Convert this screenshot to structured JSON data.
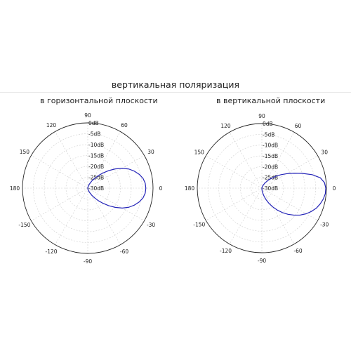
{
  "page": {
    "title": "вертикальная поляризация"
  },
  "chart_data": [
    {
      "type": "polar-line",
      "title": "в горизонтальной плоскости",
      "angle_unit": "deg",
      "angle_ticks": [
        0,
        30,
        60,
        90,
        120,
        150,
        180,
        -150,
        -120,
        -90,
        -60,
        -30
      ],
      "angle_tick_labels": [
        "0",
        "30",
        "60",
        "90",
        "120",
        "150",
        "180",
        "-150",
        "-120",
        "-90",
        "-60",
        "-30"
      ],
      "radial_ticks": [
        -30,
        -25,
        -20,
        -15,
        -10,
        -5,
        0
      ],
      "radial_tick_labels": [
        "-30dB",
        "-25dB",
        "-20dB",
        "-15dB",
        "-10dB",
        "-5dB",
        "0dB"
      ],
      "rlim": [
        -30,
        0
      ],
      "grid": true,
      "series": [
        {
          "color": "#2424b8",
          "angles": [
            -90,
            -80,
            -70,
            -60,
            -55,
            -50,
            -45,
            -40,
            -35,
            -30,
            -25,
            -20,
            -15,
            -10,
            -5,
            0,
            5,
            10,
            15,
            20,
            25,
            30,
            35,
            40,
            45,
            50,
            55,
            60,
            70,
            80,
            90
          ],
          "values": [
            -30,
            -29.5,
            -28.2,
            -26.1,
            -24.6,
            -22.5,
            -20.2,
            -17.5,
            -14.6,
            -11.7,
            -9.2,
            -7.2,
            -5.5,
            -4.2,
            -3.5,
            -3.3,
            -3.5,
            -4.2,
            -5.5,
            -7.2,
            -9.2,
            -11.7,
            -14.6,
            -17.5,
            -20.2,
            -22.5,
            -24.6,
            -26.1,
            -28.2,
            -29.5,
            -30
          ]
        }
      ]
    },
    {
      "type": "polar-line",
      "title": "в вертикальной плоскости",
      "angle_unit": "deg",
      "angle_ticks": [
        0,
        30,
        60,
        90,
        120,
        150,
        180,
        -150,
        -120,
        -90,
        -60,
        -30
      ],
      "angle_tick_labels": [
        "0",
        "30",
        "60",
        "90",
        "120",
        "150",
        "180",
        "-150",
        "-120",
        "-90",
        "-60",
        "-30"
      ],
      "radial_ticks": [
        -30,
        -25,
        -20,
        -15,
        -10,
        -5,
        0
      ],
      "radial_tick_labels": [
        "-30dB",
        "-25dB",
        "-20dB",
        "-15dB",
        "-10dB",
        "-5dB",
        "0dB"
      ],
      "rlim": [
        -30,
        0
      ],
      "grid": true,
      "series": [
        {
          "color": "#2424b8",
          "angles": [
            -90,
            -85,
            -80,
            -75,
            -70,
            -65,
            -60,
            -55,
            -50,
            -45,
            -40,
            -35,
            -30,
            -25,
            -20,
            -15,
            -10,
            -5,
            0,
            5,
            10,
            15,
            20,
            25,
            30,
            35,
            40,
            50,
            60,
            70,
            80,
            90
          ],
          "values": [
            -30,
            -29,
            -27.8,
            -26.2,
            -24.3,
            -22.2,
            -20,
            -17.6,
            -15.2,
            -12.8,
            -10.5,
            -8.2,
            -6.2,
            -4.5,
            -3,
            -1.9,
            -1,
            -0.4,
            -0.3,
            -0.8,
            -2.4,
            -5.8,
            -10,
            -13.6,
            -16.6,
            -19.1,
            -21.3,
            -24.8,
            -27.3,
            -28.9,
            -29.8,
            -30
          ]
        }
      ]
    }
  ]
}
